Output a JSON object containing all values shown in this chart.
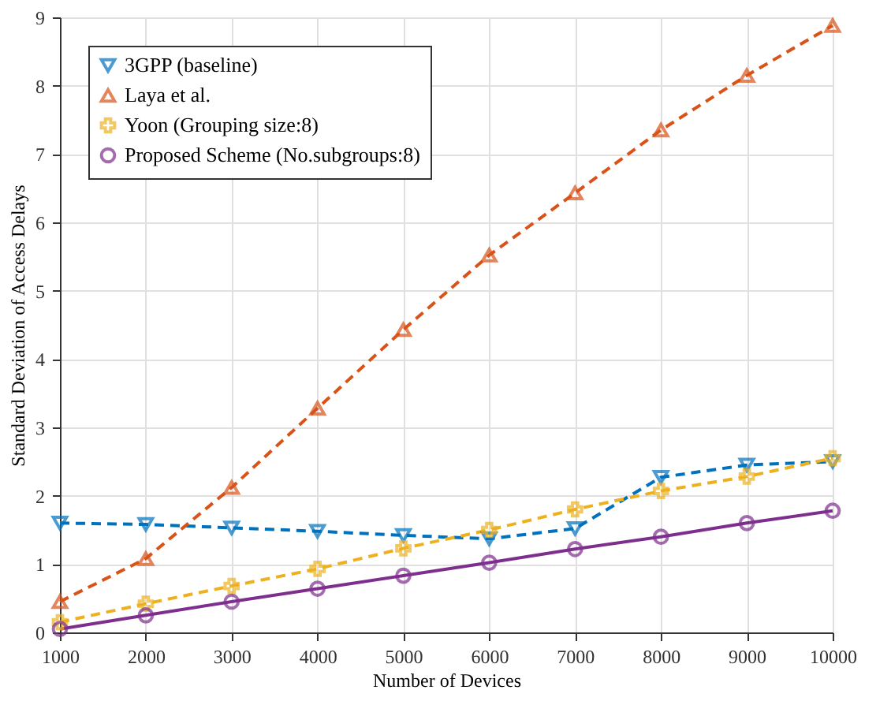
{
  "chart_data": {
    "type": "line",
    "xlabel": "Number of Devices",
    "ylabel": "Standard Deviation of Access Delays",
    "x": [
      1000,
      2000,
      3000,
      4000,
      5000,
      6000,
      7000,
      8000,
      9000,
      10000
    ],
    "xlim": [
      1000,
      10000
    ],
    "xticks": [
      1000,
      2000,
      3000,
      4000,
      5000,
      6000,
      7000,
      8000,
      9000,
      10000
    ],
    "ylim": [
      0,
      9
    ],
    "yticks": [
      0,
      1,
      2,
      3,
      4,
      5,
      6,
      7,
      8,
      9
    ],
    "grid": true,
    "legend": "top left",
    "series": [
      {
        "name": "3GPP (baseline)",
        "color": "#0072bd",
        "marker": "triangle-down",
        "line_style": "dashed",
        "values": [
          1.6,
          1.58,
          1.53,
          1.48,
          1.42,
          1.37,
          1.52,
          2.27,
          2.45,
          2.5
        ]
      },
      {
        "name": "Laya et al.",
        "color": "#d95319",
        "marker": "triangle",
        "line_style": "dashed",
        "values": [
          0.45,
          1.08,
          2.12,
          3.28,
          4.43,
          5.52,
          6.43,
          7.35,
          8.15,
          8.88
        ]
      },
      {
        "name": "Yoon (Grouping size:8)",
        "color": "#edb120",
        "marker": "cross",
        "line_style": "dashed",
        "values": [
          0.15,
          0.42,
          0.68,
          0.93,
          1.23,
          1.5,
          1.8,
          2.07,
          2.28,
          2.55
        ]
      },
      {
        "name": "Proposed Scheme (No.subgroups:8)",
        "color": "#7e2f8e",
        "marker": "circle",
        "line_style": "solid",
        "values": [
          0.05,
          0.25,
          0.45,
          0.64,
          0.83,
          1.02,
          1.22,
          1.4,
          1.6,
          1.78
        ]
      }
    ]
  }
}
